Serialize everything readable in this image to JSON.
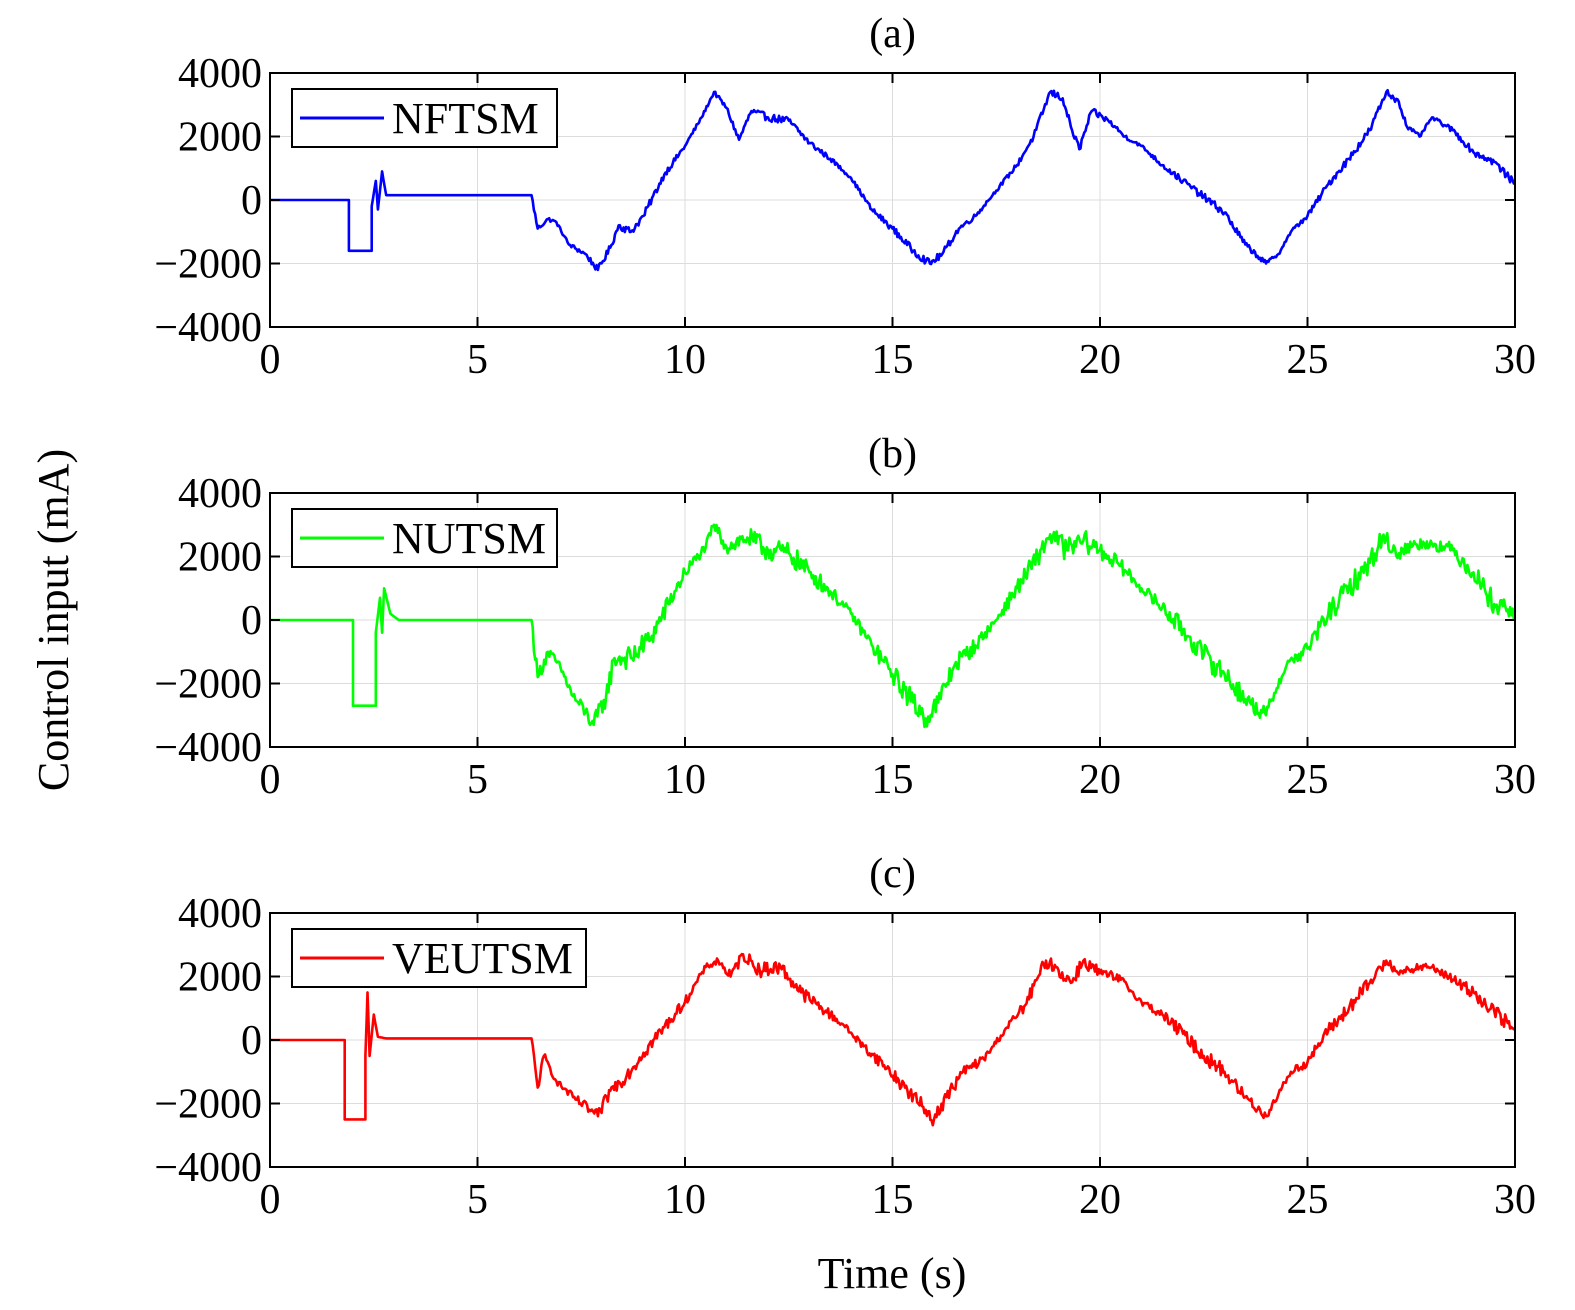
{
  "ylabel": "Control input (mA)",
  "xlabel": "Time (s)",
  "chart_data": [
    {
      "type": "line",
      "title": "(a)",
      "xlim": [
        0,
        30
      ],
      "ylim": [
        -4000,
        4000
      ],
      "xticks": [
        0,
        5,
        10,
        15,
        20,
        25,
        30
      ],
      "yticks": [
        4000,
        2000,
        0,
        -2000,
        -4000
      ],
      "ytick_labels": [
        "4000",
        "2000",
        "0",
        "−2000",
        "−4000"
      ],
      "grid": true,
      "legend": "top-left",
      "series": [
        {
          "name": "NFTSM",
          "color": "#0000ff",
          "noise": 120,
          "points": [
            [
              0,
              0
            ],
            [
              1.9,
              0
            ],
            [
              1.9,
              -1600
            ],
            [
              2.45,
              -1600
            ],
            [
              2.45,
              -200
            ],
            [
              2.55,
              600
            ],
            [
              2.6,
              -300
            ],
            [
              2.7,
              900
            ],
            [
              2.8,
              150
            ],
            [
              3.0,
              150
            ],
            [
              3.2,
              150
            ],
            [
              6.3,
              150
            ],
            [
              6.45,
              -900
            ],
            [
              6.7,
              -600
            ],
            [
              6.9,
              -700
            ],
            [
              7.2,
              -1400
            ],
            [
              7.6,
              -1700
            ],
            [
              7.9,
              -2200
            ],
            [
              8.2,
              -1500
            ],
            [
              8.4,
              -800
            ],
            [
              8.7,
              -1000
            ],
            [
              9.0,
              -500
            ],
            [
              9.5,
              800
            ],
            [
              10.0,
              1700
            ],
            [
              10.4,
              2600
            ],
            [
              10.7,
              3400
            ],
            [
              11.0,
              2900
            ],
            [
              11.3,
              1900
            ],
            [
              11.6,
              2800
            ],
            [
              12.0,
              2600
            ],
            [
              12.5,
              2500
            ],
            [
              13.0,
              1800
            ],
            [
              13.5,
              1300
            ],
            [
              14.0,
              700
            ],
            [
              14.5,
              -300
            ],
            [
              15.0,
              -900
            ],
            [
              15.5,
              -1600
            ],
            [
              15.9,
              -2000
            ],
            [
              16.2,
              -1700
            ],
            [
              16.6,
              -900
            ],
            [
              17.0,
              -500
            ],
            [
              17.5,
              300
            ],
            [
              18.0,
              1100
            ],
            [
              18.4,
              2000
            ],
            [
              18.8,
              3400
            ],
            [
              19.1,
              3200
            ],
            [
              19.3,
              2300
            ],
            [
              19.5,
              1600
            ],
            [
              19.8,
              2800
            ],
            [
              20.2,
              2500
            ],
            [
              20.6,
              2000
            ],
            [
              21.0,
              1700
            ],
            [
              21.5,
              1100
            ],
            [
              22.0,
              600
            ],
            [
              22.5,
              100
            ],
            [
              23.0,
              -400
            ],
            [
              23.5,
              -1400
            ],
            [
              24.0,
              -2000
            ],
            [
              24.3,
              -1700
            ],
            [
              24.6,
              -1000
            ],
            [
              25.0,
              -500
            ],
            [
              25.5,
              500
            ],
            [
              26.0,
              1300
            ],
            [
              26.5,
              2200
            ],
            [
              26.9,
              3400
            ],
            [
              27.2,
              3100
            ],
            [
              27.4,
              2300
            ],
            [
              27.7,
              2000
            ],
            [
              28.0,
              2600
            ],
            [
              28.5,
              2200
            ],
            [
              29.0,
              1500
            ],
            [
              29.5,
              1200
            ],
            [
              30.0,
              500
            ]
          ]
        }
      ]
    },
    {
      "type": "line",
      "title": "(b)",
      "xlim": [
        0,
        30
      ],
      "ylim": [
        -4000,
        4000
      ],
      "xticks": [
        0,
        5,
        10,
        15,
        20,
        25,
        30
      ],
      "yticks": [
        4000,
        2000,
        0,
        -2000,
        -4000
      ],
      "ytick_labels": [
        "4000",
        "2000",
        "0",
        "−2000",
        "−4000"
      ],
      "grid": true,
      "legend": "top-left",
      "series": [
        {
          "name": "NUTSM",
          "color": "#00ff00",
          "noise": 360,
          "points": [
            [
              0,
              0
            ],
            [
              2.0,
              0
            ],
            [
              2.0,
              -2700
            ],
            [
              2.55,
              -2700
            ],
            [
              2.55,
              -400
            ],
            [
              2.65,
              700
            ],
            [
              2.7,
              -400
            ],
            [
              2.75,
              1000
            ],
            [
              2.9,
              200
            ],
            [
              3.1,
              0
            ],
            [
              6.3,
              0
            ],
            [
              6.45,
              -1800
            ],
            [
              6.7,
              -1000
            ],
            [
              7.0,
              -1500
            ],
            [
              7.3,
              -2400
            ],
            [
              7.6,
              -2900
            ],
            [
              7.8,
              -3300
            ],
            [
              8.1,
              -2400
            ],
            [
              8.3,
              -1200
            ],
            [
              8.7,
              -1200
            ],
            [
              9.2,
              -500
            ],
            [
              9.6,
              500
            ],
            [
              10.0,
              1500
            ],
            [
              10.5,
              2300
            ],
            [
              10.7,
              3000
            ],
            [
              11.0,
              2300
            ],
            [
              11.5,
              2600
            ],
            [
              12.0,
              2200
            ],
            [
              12.5,
              2100
            ],
            [
              13.0,
              1500
            ],
            [
              13.5,
              900
            ],
            [
              14.0,
              200
            ],
            [
              14.5,
              -800
            ],
            [
              15.0,
              -1700
            ],
            [
              15.5,
              -2600
            ],
            [
              15.8,
              -3100
            ],
            [
              16.1,
              -2600
            ],
            [
              16.5,
              -1400
            ],
            [
              17.0,
              -800
            ],
            [
              17.5,
              0
            ],
            [
              18.0,
              1000
            ],
            [
              18.5,
              2000
            ],
            [
              18.8,
              2700
            ],
            [
              19.2,
              2200
            ],
            [
              19.6,
              2500
            ],
            [
              20.0,
              2200
            ],
            [
              20.5,
              1700
            ],
            [
              21.0,
              1000
            ],
            [
              21.5,
              400
            ],
            [
              22.0,
              -300
            ],
            [
              22.5,
              -1100
            ],
            [
              23.0,
              -1700
            ],
            [
              23.5,
              -2500
            ],
            [
              24.0,
              -3000
            ],
            [
              24.2,
              -2300
            ],
            [
              24.5,
              -1400
            ],
            [
              25.0,
              -900
            ],
            [
              25.5,
              200
            ],
            [
              26.0,
              1000
            ],
            [
              26.5,
              1800
            ],
            [
              26.8,
              2600
            ],
            [
              27.2,
              2100
            ],
            [
              27.6,
              2400
            ],
            [
              28.0,
              2400
            ],
            [
              28.5,
              2200
            ],
            [
              29.0,
              1500
            ],
            [
              29.5,
              500
            ],
            [
              30.0,
              300
            ]
          ]
        }
      ]
    },
    {
      "type": "line",
      "title": "(c)",
      "xlim": [
        0,
        30
      ],
      "ylim": [
        -4000,
        4000
      ],
      "xticks": [
        0,
        5,
        10,
        15,
        20,
        25,
        30
      ],
      "yticks": [
        4000,
        2000,
        0,
        -2000,
        -4000
      ],
      "ytick_labels": [
        "4000",
        "2000",
        "0",
        "−2000",
        "−4000"
      ],
      "grid": true,
      "legend": "top-left",
      "series": [
        {
          "name": "VEUTSM",
          "color": "#ff0000",
          "noise": 230,
          "points": [
            [
              0,
              0
            ],
            [
              1.8,
              0
            ],
            [
              1.8,
              -2500
            ],
            [
              2.3,
              -2500
            ],
            [
              2.3,
              -500
            ],
            [
              2.35,
              1500
            ],
            [
              2.4,
              -500
            ],
            [
              2.5,
              800
            ],
            [
              2.6,
              100
            ],
            [
              2.8,
              50
            ],
            [
              3.1,
              50
            ],
            [
              6.3,
              50
            ],
            [
              6.45,
              -1500
            ],
            [
              6.6,
              -500
            ],
            [
              6.9,
              -1300
            ],
            [
              7.3,
              -1800
            ],
            [
              7.7,
              -2200
            ],
            [
              7.9,
              -2400
            ],
            [
              8.2,
              -1600
            ],
            [
              8.6,
              -1100
            ],
            [
              9.0,
              -400
            ],
            [
              9.5,
              400
            ],
            [
              10.0,
              1200
            ],
            [
              10.5,
              2300
            ],
            [
              10.8,
              2500
            ],
            [
              11.1,
              2000
            ],
            [
              11.4,
              2700
            ],
            [
              11.8,
              2200
            ],
            [
              12.3,
              2300
            ],
            [
              12.8,
              1500
            ],
            [
              13.3,
              1000
            ],
            [
              13.8,
              500
            ],
            [
              14.3,
              -200
            ],
            [
              14.8,
              -800
            ],
            [
              15.3,
              -1500
            ],
            [
              15.8,
              -2200
            ],
            [
              16.0,
              -2500
            ],
            [
              16.3,
              -1800
            ],
            [
              16.7,
              -1000
            ],
            [
              17.2,
              -600
            ],
            [
              17.7,
              300
            ],
            [
              18.2,
              1100
            ],
            [
              18.7,
              2500
            ],
            [
              19.0,
              2200
            ],
            [
              19.3,
              1800
            ],
            [
              19.6,
              2500
            ],
            [
              20.0,
              2100
            ],
            [
              20.5,
              1900
            ],
            [
              21.0,
              1200
            ],
            [
              21.5,
              800
            ],
            [
              22.0,
              200
            ],
            [
              22.5,
              -500
            ],
            [
              23.0,
              -1000
            ],
            [
              23.5,
              -1800
            ],
            [
              24.0,
              -2400
            ],
            [
              24.3,
              -1700
            ],
            [
              24.6,
              -1000
            ],
            [
              25.0,
              -700
            ],
            [
              25.5,
              300
            ],
            [
              26.0,
              1000
            ],
            [
              26.5,
              1800
            ],
            [
              26.9,
              2500
            ],
            [
              27.3,
              2100
            ],
            [
              27.7,
              2300
            ],
            [
              28.0,
              2300
            ],
            [
              28.5,
              1900
            ],
            [
              29.0,
              1500
            ],
            [
              29.5,
              900
            ],
            [
              30.0,
              300
            ]
          ]
        }
      ]
    }
  ]
}
